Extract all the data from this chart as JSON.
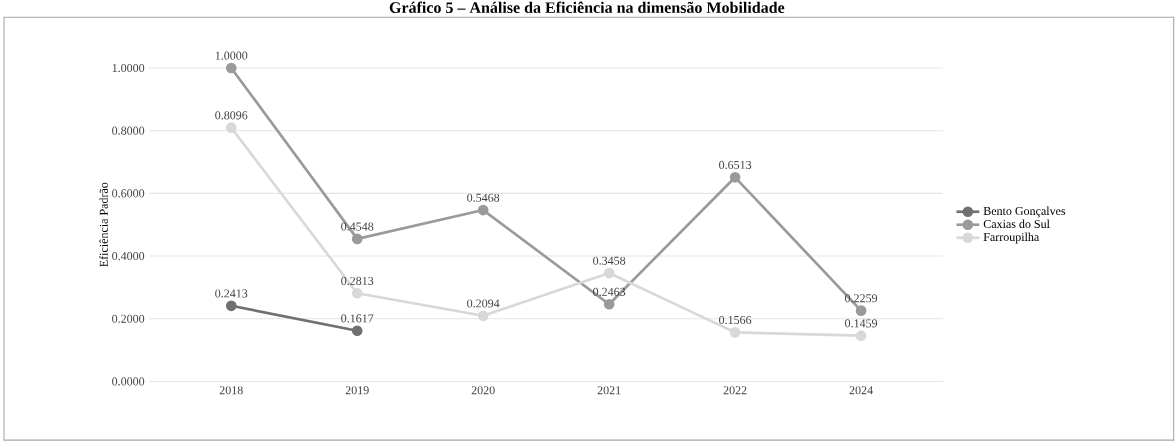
{
  "chart_data": {
    "type": "line",
    "title": "Gráfico 5 – Análise da Eficiência na dimensão Mobilidade",
    "ylabel": "Eficiência Padrão",
    "categories": [
      "2018",
      "2019",
      "2020",
      "2021",
      "2022",
      "2024"
    ],
    "series": [
      {
        "name": "Bento Gonçalves",
        "color": "#707070",
        "values": [
          0.2413,
          0.1617,
          null,
          null,
          null,
          null
        ],
        "value_labels": [
          "0.2413",
          "0.1617",
          null,
          null,
          null,
          null
        ]
      },
      {
        "name": "Caxias do Sul",
        "color": "#9a9a9a",
        "values": [
          1.0,
          0.4548,
          0.5468,
          0.2463,
          0.6513,
          0.2259
        ],
        "value_labels": [
          "1.0000",
          "0.4548",
          "0.5468",
          "0.2463",
          "0.6513",
          "0.2259"
        ]
      },
      {
        "name": "Farroupilha",
        "color": "#d8d8d8",
        "values": [
          0.8096,
          0.2813,
          0.2094,
          0.3458,
          0.1566,
          0.1459
        ],
        "value_labels": [
          "0.8096",
          "0.2813",
          "0.2094",
          "0.3458",
          "0.1566",
          "0.1459"
        ]
      }
    ],
    "ylim": [
      0,
      1
    ],
    "yticks": [
      {
        "value": 0,
        "label": "0.0000"
      },
      {
        "value": 0.2,
        "label": "0.2000"
      },
      {
        "value": 0.4,
        "label": "0.4000"
      },
      {
        "value": 0.6,
        "label": "0.6000"
      },
      {
        "value": 0.8,
        "label": "0.8000"
      },
      {
        "value": 1,
        "label": "1.0000"
      }
    ],
    "grid": "y",
    "legend": "right",
    "marker": "circle",
    "line_style": "solid"
  }
}
